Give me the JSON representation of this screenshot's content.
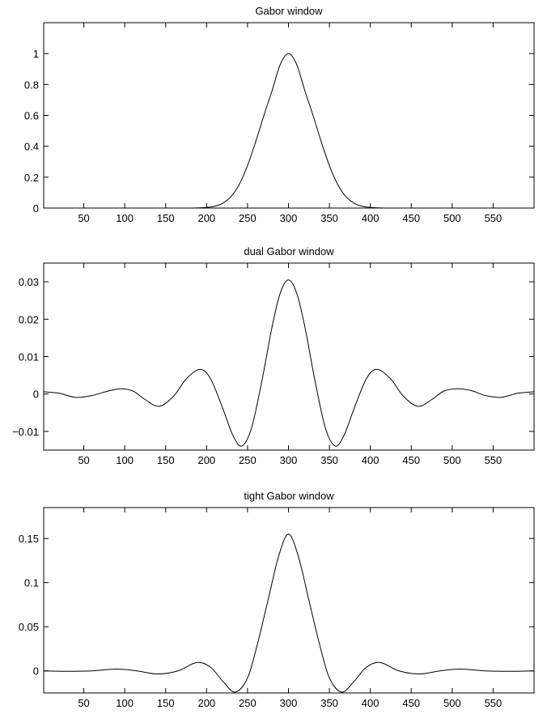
{
  "chart_data": [
    {
      "type": "line",
      "title": "Gabor window",
      "xlim": [
        1,
        600
      ],
      "ylim": [
        0,
        1.2
      ],
      "xticks": [
        50,
        100,
        150,
        200,
        250,
        300,
        350,
        400,
        450,
        500,
        550
      ],
      "xtick_labels": [
        "50",
        "100",
        "150",
        "200",
        "250",
        "300",
        "350",
        "400",
        "450",
        "500",
        "550"
      ],
      "yticks": [
        0,
        0.2,
        0.4,
        0.6,
        0.8,
        1
      ],
      "ytick_labels": [
        "0",
        "0.2",
        "0.4",
        "0.6",
        "0.8",
        "1"
      ],
      "grid": false,
      "series": [
        {
          "x": [
            180,
            190,
            200,
            210,
            220,
            230,
            240,
            250,
            260,
            270,
            280,
            290,
            300,
            310,
            320,
            330,
            340,
            350,
            360,
            370,
            380,
            390,
            400,
            410,
            420
          ],
          "y": [
            0.0,
            0.001,
            0.004,
            0.012,
            0.032,
            0.075,
            0.154,
            0.275,
            0.43,
            0.6,
            0.76,
            0.93,
            1.0,
            0.93,
            0.76,
            0.6,
            0.43,
            0.275,
            0.154,
            0.075,
            0.032,
            0.012,
            0.004,
            0.001,
            0.0
          ]
        }
      ]
    },
    {
      "type": "line",
      "title": "dual Gabor window",
      "xlim": [
        1,
        600
      ],
      "ylim": [
        -0.015,
        0.035
      ],
      "xticks": [
        50,
        100,
        150,
        200,
        250,
        300,
        350,
        400,
        450,
        500,
        550
      ],
      "xtick_labels": [
        "50",
        "100",
        "150",
        "200",
        "250",
        "300",
        "350",
        "400",
        "450",
        "500",
        "550"
      ],
      "yticks": [
        -0.01,
        0,
        0.01,
        0.02,
        0.03
      ],
      "ytick_labels": [
        "−0.01",
        "0",
        "0.01",
        "0.02",
        "0.03"
      ],
      "grid": false,
      "series": [
        {
          "x": [
            1,
            20,
            40,
            60,
            80,
            95,
            110,
            125,
            142,
            160,
            175,
            192,
            205,
            220,
            232,
            243,
            255,
            268,
            280,
            290,
            300,
            310,
            320,
            332,
            345,
            357,
            368,
            380,
            395,
            408,
            425,
            440,
            458,
            475,
            490,
            508,
            525,
            540,
            560,
            580,
            600
          ],
          "y": [
            0.0006,
            0.0002,
            -0.0009,
            -0.0004,
            0.0008,
            0.0014,
            0.0008,
            -0.0015,
            -0.0033,
            -0.0005,
            0.004,
            0.0066,
            0.004,
            -0.004,
            -0.011,
            -0.0139,
            -0.009,
            0.004,
            0.018,
            0.027,
            0.0305,
            0.027,
            0.018,
            0.004,
            -0.009,
            -0.0139,
            -0.011,
            -0.004,
            0.004,
            0.0066,
            0.004,
            -0.0005,
            -0.0033,
            -0.0015,
            0.0008,
            0.0014,
            0.0008,
            -0.0004,
            -0.0009,
            0.0002,
            0.0006
          ]
        }
      ]
    },
    {
      "type": "line",
      "title": "tight Gabor window",
      "xlim": [
        1,
        600
      ],
      "ylim": [
        -0.025,
        0.185
      ],
      "xticks": [
        50,
        100,
        150,
        200,
        250,
        300,
        350,
        400,
        450,
        500,
        550
      ],
      "xtick_labels": [
        "50",
        "100",
        "150",
        "200",
        "250",
        "300",
        "350",
        "400",
        "450",
        "500",
        "550"
      ],
      "yticks": [
        0,
        0.05,
        0.1,
        0.15
      ],
      "ytick_labels": [
        "0",
        "0.05",
        "0.1",
        "0.15"
      ],
      "grid": false,
      "series": [
        {
          "x": [
            1,
            30,
            60,
            90,
            115,
            140,
            165,
            188,
            205,
            220,
            235,
            250,
            262,
            275,
            288,
            300,
            312,
            325,
            338,
            350,
            365,
            380,
            395,
            412,
            435,
            460,
            485,
            510,
            540,
            570,
            600
          ],
          "y": [
            0.0,
            -0.0005,
            0.0,
            0.002,
            0.0,
            -0.0035,
            0.0,
            0.0095,
            0.004,
            -0.012,
            -0.024,
            -0.008,
            0.03,
            0.08,
            0.13,
            0.155,
            0.13,
            0.08,
            0.03,
            -0.008,
            -0.024,
            -0.012,
            0.004,
            0.0095,
            0.0,
            -0.0035,
            0.0,
            0.002,
            0.0,
            -0.0005,
            0.0
          ]
        }
      ]
    }
  ]
}
